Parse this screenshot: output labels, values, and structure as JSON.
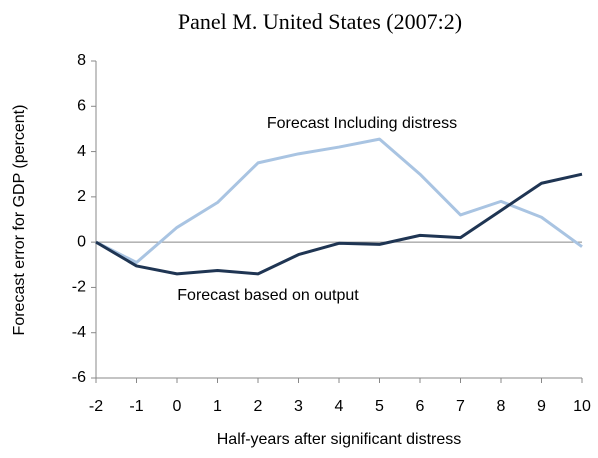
{
  "chart_data": {
    "type": "line",
    "title": "Panel M.  United States (2007:2)",
    "x_label": "Half-years after significant distress",
    "y_label": "Forecast error for GDP (percent)",
    "x": [
      -2,
      -1,
      0,
      1,
      2,
      3,
      4,
      5,
      6,
      7,
      8,
      9,
      10
    ],
    "xlim": [
      -2,
      10
    ],
    "xticks": [
      -2,
      -1,
      0,
      1,
      2,
      3,
      4,
      5,
      6,
      7,
      8,
      9,
      10
    ],
    "ylim": [
      -6,
      8
    ],
    "yticks": [
      -6,
      -4,
      -2,
      0,
      2,
      4,
      6,
      8
    ],
    "grid": false,
    "series": [
      {
        "name": "Forecast Including distress",
        "color": "#a9c4e2",
        "values": [
          0,
          -0.9,
          0.65,
          1.75,
          3.5,
          3.9,
          4.2,
          4.55,
          3.0,
          1.2,
          1.8,
          1.1,
          -0.2
        ]
      },
      {
        "name": "Forecast based on output",
        "color": "#1f3553",
        "values": [
          0,
          -1.05,
          -1.4,
          -1.25,
          -1.4,
          -0.55,
          -0.05,
          -0.1,
          0.3,
          0.2,
          1.4,
          2.6,
          3.0
        ]
      }
    ]
  }
}
